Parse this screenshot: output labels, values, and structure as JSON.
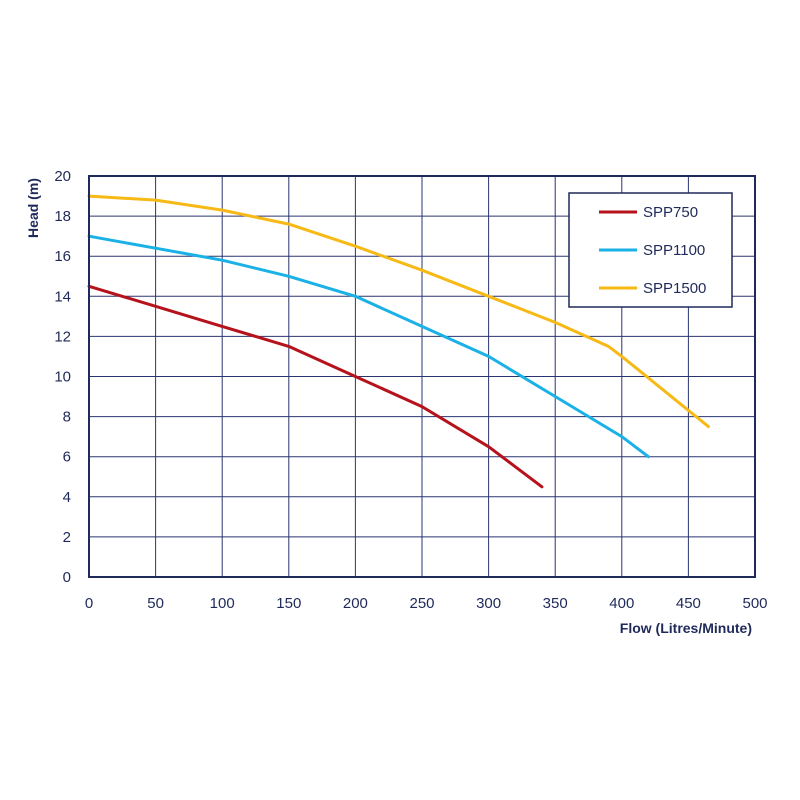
{
  "chart_data": {
    "type": "line",
    "xlabel": "Flow (Litres/Minute)",
    "ylabel": "Head (m)",
    "xlim": [
      0,
      500
    ],
    "ylim": [
      0,
      20
    ],
    "xticks": [
      0,
      50,
      100,
      150,
      200,
      250,
      300,
      350,
      400,
      450,
      500
    ],
    "yticks": [
      0,
      2,
      4,
      6,
      8,
      10,
      12,
      14,
      16,
      18,
      20
    ],
    "grid": true,
    "legend_position": "top-right",
    "series": [
      {
        "name": "SPP750",
        "color": "#b5121b",
        "points": [
          [
            0,
            14.5
          ],
          [
            50,
            13.5
          ],
          [
            100,
            12.5
          ],
          [
            150,
            11.5
          ],
          [
            200,
            10
          ],
          [
            250,
            8.5
          ],
          [
            300,
            6.5
          ],
          [
            340,
            4.5
          ]
        ]
      },
      {
        "name": "SPP1100",
        "color": "#1ab1e6",
        "points": [
          [
            0,
            17
          ],
          [
            50,
            16.4
          ],
          [
            100,
            15.8
          ],
          [
            150,
            15
          ],
          [
            200,
            14
          ],
          [
            250,
            12.5
          ],
          [
            300,
            11
          ],
          [
            350,
            9
          ],
          [
            400,
            7
          ],
          [
            420,
            6
          ]
        ]
      },
      {
        "name": "SPP1500",
        "color": "#f6b915",
        "points": [
          [
            0,
            19
          ],
          [
            50,
            18.8
          ],
          [
            100,
            18.3
          ],
          [
            150,
            17.6
          ],
          [
            200,
            16.5
          ],
          [
            250,
            15.3
          ],
          [
            300,
            14
          ],
          [
            350,
            12.7
          ],
          [
            390,
            11.5
          ],
          [
            400,
            11
          ],
          [
            465,
            7.5
          ]
        ]
      }
    ]
  }
}
